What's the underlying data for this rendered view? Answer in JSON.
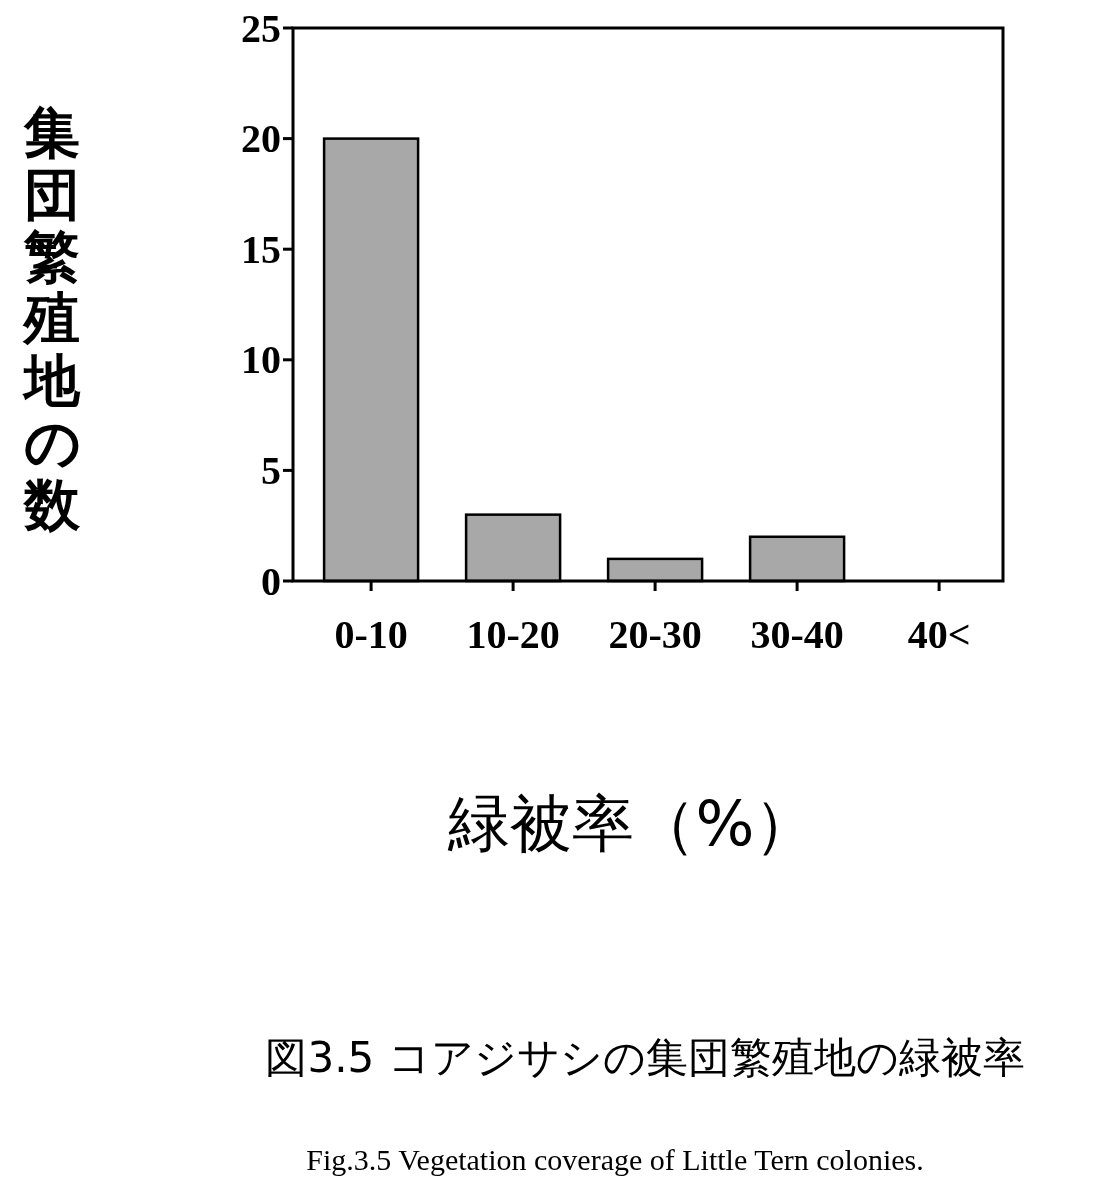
{
  "chart_data": {
    "type": "bar",
    "title": "図3.5 コアジサシの集団繁殖地の緑被率",
    "xlabel": "緑被率（%）",
    "ylabel": "集団繁殖地の数",
    "categories": [
      "0-10",
      "10-20",
      "20-30",
      "30-40",
      "40<"
    ],
    "values": [
      20,
      3,
      1,
      2,
      0
    ],
    "color": "#a8a8a8",
    "ylim": [
      0,
      25
    ],
    "yticks": [
      0,
      5,
      10,
      15,
      20,
      25
    ],
    "annotations": [
      "Fig.3.5  Vegetation coverage of Little Tern colonies."
    ]
  }
}
